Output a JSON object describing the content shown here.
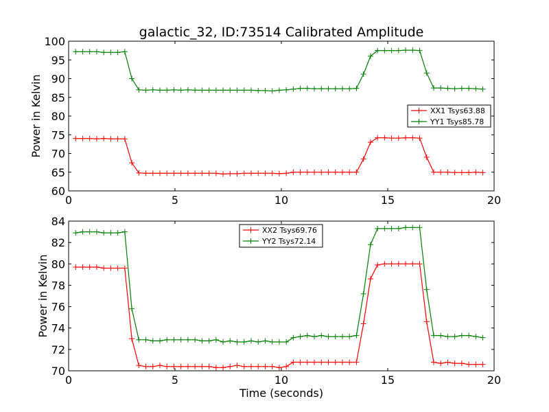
{
  "figure": {
    "title": "galactic_32, ID:73514 Calibrated Amplitude",
    "colors": {
      "series_xx": "#ff0000",
      "series_yy": "#008000",
      "axes": "#000000",
      "background": "#ffffff"
    }
  },
  "chart_data": [
    {
      "type": "line",
      "title": "galactic_32, ID:73514 Calibrated Amplitude",
      "xlabel": "",
      "ylabel": "Power in Kelvin",
      "xlim": [
        0,
        20
      ],
      "ylim": [
        60,
        100
      ],
      "xticks": [
        0,
        5,
        10,
        15,
        20
      ],
      "yticks": [
        60,
        65,
        70,
        75,
        80,
        85,
        90,
        95,
        100
      ],
      "grid": false,
      "legend": "center-right",
      "x": [
        0.33,
        0.66,
        0.99,
        1.32,
        1.65,
        1.98,
        2.31,
        2.64,
        2.97,
        3.3,
        3.63,
        3.96,
        4.29,
        4.62,
        4.95,
        5.28,
        5.61,
        5.94,
        6.27,
        6.6,
        6.93,
        7.26,
        7.59,
        7.92,
        8.25,
        8.58,
        8.91,
        9.24,
        9.57,
        9.9,
        10.23,
        10.56,
        10.89,
        11.22,
        11.55,
        11.88,
        12.21,
        12.54,
        12.87,
        13.2,
        13.53,
        13.86,
        14.19,
        14.52,
        14.85,
        15.18,
        15.51,
        15.84,
        16.17,
        16.5,
        16.83,
        17.16,
        17.49,
        17.82,
        18.15,
        18.48,
        18.81,
        19.14,
        19.47
      ],
      "series": [
        {
          "name": "XX1 Tsys63.88",
          "color": "#ff0000",
          "values": [
            74.0,
            74.0,
            74.0,
            73.9,
            74.0,
            73.9,
            73.9,
            73.9,
            67.5,
            64.8,
            64.7,
            64.7,
            64.7,
            64.7,
            64.7,
            64.7,
            64.7,
            64.7,
            64.7,
            64.7,
            64.7,
            64.5,
            64.6,
            64.6,
            64.7,
            64.7,
            64.7,
            64.7,
            64.7,
            64.6,
            64.7,
            65.0,
            65.0,
            65.0,
            65.0,
            65.0,
            65.0,
            65.0,
            65.0,
            65.0,
            65.0,
            68.5,
            73.0,
            74.2,
            74.2,
            74.1,
            74.1,
            74.2,
            74.2,
            74.1,
            69.0,
            65.0,
            65.0,
            65.0,
            64.9,
            64.9,
            64.9,
            65.0,
            64.9
          ]
        },
        {
          "name": "YY1 Tsys85.78",
          "color": "#008000",
          "values": [
            97.2,
            97.2,
            97.2,
            97.2,
            97.0,
            97.0,
            97.0,
            97.2,
            90.0,
            87.0,
            86.9,
            87.0,
            86.9,
            86.9,
            87.0,
            86.9,
            87.0,
            86.9,
            86.9,
            86.9,
            86.9,
            86.9,
            86.9,
            86.9,
            86.9,
            86.9,
            86.8,
            86.8,
            86.7,
            86.9,
            87.0,
            87.2,
            87.4,
            87.4,
            87.3,
            87.3,
            87.3,
            87.3,
            87.3,
            87.3,
            87.4,
            91.2,
            96.0,
            97.5,
            97.5,
            97.5,
            97.5,
            97.6,
            97.6,
            97.5,
            91.5,
            87.5,
            87.5,
            87.4,
            87.3,
            87.4,
            87.4,
            87.3,
            87.2
          ]
        }
      ]
    },
    {
      "type": "line",
      "title": "",
      "xlabel": "Time (seconds)",
      "ylabel": "Power in Kelvin",
      "xlim": [
        0,
        20
      ],
      "ylim": [
        70,
        84
      ],
      "xticks": [
        0,
        5,
        10,
        15,
        20
      ],
      "yticks": [
        70,
        72,
        74,
        76,
        78,
        80,
        82,
        84
      ],
      "grid": false,
      "legend": "top-center",
      "x": [
        0.33,
        0.66,
        0.99,
        1.32,
        1.65,
        1.98,
        2.31,
        2.64,
        2.97,
        3.3,
        3.63,
        3.96,
        4.29,
        4.62,
        4.95,
        5.28,
        5.61,
        5.94,
        6.27,
        6.6,
        6.93,
        7.26,
        7.59,
        7.92,
        8.25,
        8.58,
        8.91,
        9.24,
        9.57,
        9.9,
        10.23,
        10.56,
        10.89,
        11.22,
        11.55,
        11.88,
        12.21,
        12.54,
        12.87,
        13.2,
        13.53,
        13.86,
        14.19,
        14.52,
        14.85,
        15.18,
        15.51,
        15.84,
        16.17,
        16.5,
        16.83,
        17.16,
        17.49,
        17.82,
        18.15,
        18.48,
        18.81,
        19.14,
        19.47
      ],
      "series": [
        {
          "name": "XX2 Tsys69.76",
          "color": "#ff0000",
          "values": [
            79.7,
            79.7,
            79.7,
            79.7,
            79.6,
            79.6,
            79.6,
            79.6,
            73.0,
            70.5,
            70.4,
            70.4,
            70.5,
            70.4,
            70.4,
            70.4,
            70.4,
            70.4,
            70.4,
            70.4,
            70.3,
            70.3,
            70.4,
            70.5,
            70.4,
            70.4,
            70.4,
            70.4,
            70.4,
            70.3,
            70.4,
            70.8,
            70.8,
            70.8,
            70.8,
            70.8,
            70.8,
            70.8,
            70.8,
            70.8,
            70.8,
            74.4,
            78.6,
            79.9,
            80.0,
            80.0,
            80.0,
            80.0,
            80.0,
            80.0,
            74.6,
            70.8,
            70.7,
            70.8,
            70.7,
            70.7,
            70.6,
            70.6,
            70.6
          ]
        },
        {
          "name": "YY2 Tsys72.14",
          "color": "#008000",
          "values": [
            82.9,
            83.0,
            83.0,
            83.0,
            82.9,
            82.9,
            82.9,
            83.0,
            75.8,
            72.9,
            72.9,
            72.8,
            72.8,
            72.9,
            72.9,
            72.9,
            72.9,
            72.9,
            72.8,
            72.8,
            72.9,
            72.7,
            72.8,
            72.7,
            72.7,
            72.8,
            72.7,
            72.8,
            72.7,
            72.7,
            72.7,
            73.1,
            73.2,
            73.3,
            73.2,
            73.3,
            73.2,
            73.2,
            73.2,
            73.2,
            73.3,
            77.2,
            81.8,
            83.3,
            83.3,
            83.3,
            83.3,
            83.4,
            83.4,
            83.4,
            77.6,
            73.3,
            73.3,
            73.2,
            73.2,
            73.3,
            73.3,
            73.2,
            73.1
          ]
        }
      ]
    }
  ]
}
